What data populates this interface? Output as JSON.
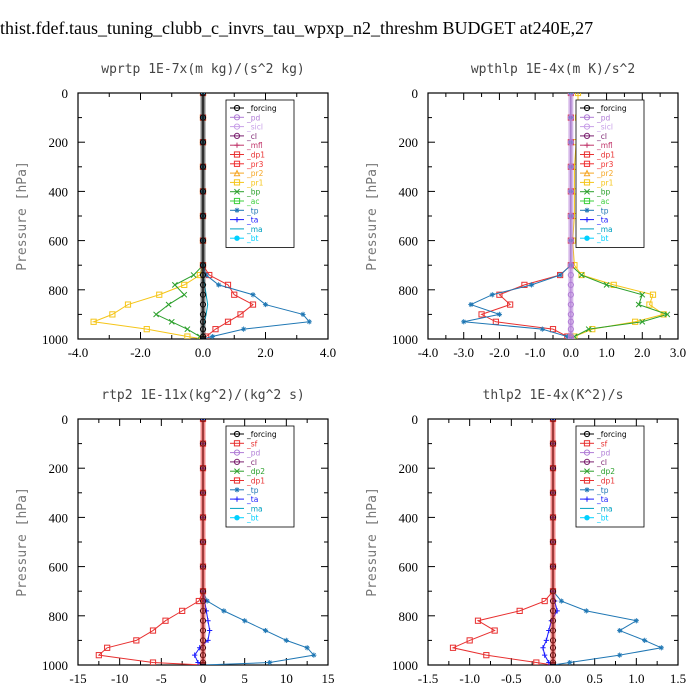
{
  "figure": {
    "title": "thist.fdef.taus_tuning_clubb_c_invrs_tau_wpxp_n2_threshm  BUDGET at240E,27"
  },
  "colors": {
    "_forcing": "#000000",
    "_pd": "#b07cd6",
    "_sicl": "#c8a0e8",
    "_cl": "#7a1f6e",
    "_mfl": "#c0356a",
    "_dp1": "#e83030",
    "_pr3": "#f03030",
    "_pr2": "#f5a623",
    "_pr1": "#f5c518",
    "_bp": "#2ca02c",
    "_ac": "#3cd03c",
    "_tp": "#1f77b4",
    "_ta": "#1a1aff",
    "_ma": "#00a0c0",
    "_bt": "#00d0ff",
    "_sf": "#e83030",
    "_dp2": "#2ca02c"
  },
  "chart_data": [
    {
      "type": "line",
      "title": "wprtp  1E-7x(m kg)/(s^2 kg)",
      "ylabel": "Pressure [hPa]",
      "xlim": [
        -4.0,
        4.0
      ],
      "ylim": [
        1000,
        0
      ],
      "xticks": [
        "-4.0",
        "-2.0",
        "0.0",
        "2.0",
        "4.0"
      ],
      "xtick_values": [
        -4,
        -2,
        0,
        2,
        4
      ],
      "yticks": [
        "0",
        "200",
        "400",
        "600",
        "800",
        "1000"
      ],
      "ytick_values": [
        0,
        200,
        400,
        600,
        800,
        1000
      ],
      "legend": [
        "_forcing",
        "_pd",
        "_sicl",
        "_cl",
        "_mfl",
        "_dp1",
        "_pr3",
        "_pr2",
        "_pr1",
        "_bp",
        "_ac",
        "_tp",
        "_ta",
        "_ma",
        "_bt"
      ],
      "pressure": [
        0,
        100,
        200,
        300,
        400,
        500,
        600,
        700,
        740,
        780,
        820,
        860,
        900,
        930,
        960,
        990,
        1000
      ],
      "series": [
        {
          "name": "_pr1",
          "values": [
            0,
            0,
            0,
            0,
            0,
            0,
            0,
            0,
            -0.1,
            -0.6,
            -1.4,
            -2.4,
            -2.9,
            -3.5,
            -1.8,
            -0.5,
            0
          ]
        },
        {
          "name": "_bp",
          "values": [
            0,
            0,
            0,
            0,
            0,
            0,
            0,
            0,
            -0.3,
            -0.9,
            -0.6,
            -1.1,
            -1.5,
            -1.0,
            -0.5,
            -0.1,
            0
          ]
        },
        {
          "name": "_dp1",
          "values": [
            0,
            0,
            0,
            0,
            0,
            0,
            0,
            0,
            0.2,
            0.8,
            1.0,
            1.6,
            1.2,
            0.8,
            0.4,
            0.1,
            0
          ]
        },
        {
          "name": "_tp",
          "values": [
            0,
            0,
            0,
            0,
            0,
            0,
            0,
            0,
            0.1,
            0.5,
            1.6,
            2.0,
            3.2,
            3.4,
            1.3,
            0.3,
            0
          ]
        },
        {
          "name": "_ma",
          "values": [
            0,
            0,
            0,
            0,
            0,
            0,
            0,
            0,
            0,
            0.05,
            0.1,
            0.15,
            0.1,
            0.05,
            0,
            0,
            0
          ]
        },
        {
          "name": "_forcing",
          "values": [
            0,
            0,
            0,
            0,
            0,
            0,
            0,
            0,
            0,
            0,
            0,
            0,
            0,
            0,
            0,
            0,
            0
          ]
        }
      ]
    },
    {
      "type": "line",
      "title": "wpthlp  1E-4x(m K)/s^2",
      "ylabel": "Pressure [hPa]",
      "xlim": [
        -4.0,
        3.0
      ],
      "ylim": [
        1000,
        0
      ],
      "xticks": [
        "-4.0",
        "-3.0",
        "-2.0",
        "-1.0",
        "0.0",
        "1.0",
        "2.0",
        "3.0"
      ],
      "xtick_values": [
        -4,
        -3,
        -2,
        -1,
        0,
        1,
        2,
        3
      ],
      "yticks": [
        "0",
        "200",
        "400",
        "600",
        "800",
        "1000"
      ],
      "ytick_values": [
        0,
        200,
        400,
        600,
        800,
        1000
      ],
      "legend": [
        "_forcing",
        "_pd",
        "_sicl",
        "_cl",
        "_mfl",
        "_dp1",
        "_pr3",
        "_pr2",
        "_pr1",
        "_bp",
        "_ac",
        "_tp",
        "_ta",
        "_ma",
        "_bt"
      ],
      "pressure": [
        0,
        100,
        200,
        300,
        400,
        500,
        600,
        700,
        740,
        780,
        820,
        860,
        900,
        930,
        960,
        990,
        1000
      ],
      "series": [
        {
          "name": "_pr1",
          "values": [
            0.2,
            0.2,
            0.15,
            0.1,
            0.1,
            0.1,
            0.05,
            0.1,
            0.3,
            1.2,
            2.3,
            2.2,
            2.6,
            1.8,
            0.6,
            0.1,
            0
          ]
        },
        {
          "name": "_bp",
          "values": [
            0,
            0,
            0,
            0,
            0,
            0,
            0,
            0,
            0.3,
            1.0,
            2.0,
            1.9,
            2.7,
            2.0,
            0.5,
            0.1,
            0
          ]
        },
        {
          "name": "_dp1",
          "values": [
            0,
            0,
            0,
            0,
            0,
            0,
            0,
            0,
            -0.3,
            -1.3,
            -2.0,
            -1.7,
            -2.5,
            -2.1,
            -0.5,
            -0.1,
            0
          ]
        },
        {
          "name": "_tp",
          "values": [
            0,
            0,
            0,
            0,
            0,
            0,
            0,
            0,
            -0.3,
            -1.1,
            -2.2,
            -2.8,
            -2.0,
            -3.0,
            -0.8,
            -0.1,
            0
          ]
        },
        {
          "name": "_pd",
          "values": [
            0,
            0,
            0,
            0,
            0,
            0,
            0,
            0,
            0,
            0,
            0,
            0,
            0,
            0,
            0,
            0,
            0
          ]
        }
      ]
    },
    {
      "type": "line",
      "title": "rtp2  1E-11x(kg^2)/(kg^2 s)",
      "ylabel": "Pressure [hPa]",
      "xlim": [
        -15,
        15
      ],
      "ylim": [
        1000,
        0
      ],
      "xticks": [
        "-15",
        "-10",
        "-5",
        "0",
        "5",
        "10",
        "15"
      ],
      "xtick_values": [
        -15,
        -10,
        -5,
        0,
        5,
        10,
        15
      ],
      "yticks": [
        "0",
        "200",
        "400",
        "600",
        "800",
        "1000"
      ],
      "ytick_values": [
        0,
        200,
        400,
        600,
        800,
        1000
      ],
      "legend": [
        "_forcing",
        "_sf",
        "_pd",
        "_cl",
        "_dp2",
        "_dp1",
        "_tp",
        "_ta",
        "_ma",
        "_bt"
      ],
      "pressure": [
        0,
        100,
        200,
        300,
        400,
        500,
        600,
        700,
        740,
        780,
        820,
        860,
        900,
        930,
        960,
        990,
        1000
      ],
      "series": [
        {
          "name": "_dp1",
          "values": [
            0,
            0,
            0,
            0,
            0,
            0,
            0,
            0,
            -0.5,
            -2.5,
            -4.5,
            -6.0,
            -8.0,
            -11.5,
            -12.5,
            -6.0,
            0
          ]
        },
        {
          "name": "_tp",
          "values": [
            0,
            0,
            0,
            0,
            0,
            0,
            0,
            0,
            0.5,
            2.5,
            5.0,
            7.5,
            10.0,
            12.5,
            13.3,
            8.0,
            0
          ]
        },
        {
          "name": "_ta",
          "values": [
            0,
            0,
            0,
            0,
            0,
            0,
            0,
            0,
            0.2,
            0.4,
            0.6,
            0.8,
            0.6,
            -0.4,
            -1.0,
            -0.6,
            0
          ]
        },
        {
          "name": "_forcing",
          "values": [
            0,
            0,
            0,
            0,
            0,
            0,
            0,
            0,
            0,
            0,
            0,
            0,
            0,
            0,
            0,
            0,
            0
          ]
        }
      ]
    },
    {
      "type": "line",
      "title": "thlp2  1E-4x(K^2)/s",
      "ylabel": "Pressure [hPa]",
      "xlim": [
        -1.5,
        1.5
      ],
      "ylim": [
        1000,
        0
      ],
      "xticks": [
        "-1.5",
        "-1.0",
        "-0.5",
        "0.0",
        "0.5",
        "1.0",
        "1.5"
      ],
      "xtick_values": [
        -1.5,
        -1.0,
        -0.5,
        0,
        0.5,
        1.0,
        1.5
      ],
      "yticks": [
        "0",
        "200",
        "400",
        "600",
        "800",
        "1000"
      ],
      "ytick_values": [
        0,
        200,
        400,
        600,
        800,
        1000
      ],
      "legend": [
        "_forcing",
        "_sf",
        "_pd",
        "_cl",
        "_dp2",
        "_dp1",
        "_tp",
        "_ta",
        "_ma",
        "_bt"
      ],
      "pressure": [
        0,
        100,
        200,
        300,
        400,
        500,
        600,
        700,
        740,
        780,
        820,
        860,
        900,
        930,
        960,
        990,
        1000
      ],
      "series": [
        {
          "name": "_dp1",
          "values": [
            0,
            0,
            0,
            0,
            0,
            0,
            0,
            0,
            -0.1,
            -0.4,
            -0.9,
            -0.7,
            -1.0,
            -1.2,
            -0.8,
            -0.2,
            0
          ]
        },
        {
          "name": "_tp",
          "values": [
            0,
            0,
            0,
            0,
            0,
            0,
            0,
            0,
            0.1,
            0.4,
            1.0,
            0.8,
            1.1,
            1.3,
            0.8,
            0.2,
            0
          ]
        },
        {
          "name": "_ta",
          "values": [
            0,
            0,
            0,
            0,
            0,
            0,
            0,
            0,
            0.02,
            0.05,
            -0.02,
            -0.05,
            -0.08,
            -0.12,
            -0.1,
            -0.05,
            0
          ]
        },
        {
          "name": "_forcing",
          "values": [
            0,
            0,
            0,
            0,
            0,
            0,
            0,
            0,
            0,
            0,
            0,
            0,
            0,
            0,
            0,
            0,
            0
          ]
        }
      ]
    }
  ]
}
